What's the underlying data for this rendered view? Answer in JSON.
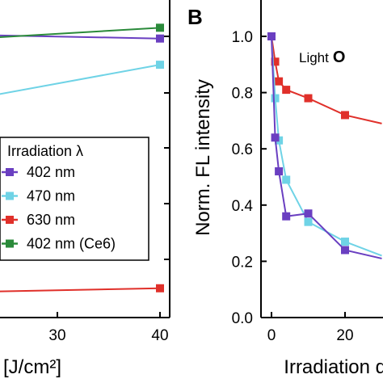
{
  "chart_data": [
    {
      "type": "line",
      "panel_label": "",
      "xlabel": "[J/cm²]",
      "ylabel": "",
      "x_ticks": [
        30,
        40
      ],
      "xlim": [
        17,
        42
      ],
      "ylim": [
        0.05,
        1.08
      ],
      "grid": false,
      "legend_title": "Irradiation λ",
      "legend_placement": "left",
      "series": [
        {
          "name": "402 nm",
          "color": "#6a3fc1",
          "x": [
            40
          ],
          "y": [
            0.955
          ]
        },
        {
          "name": "470 nm",
          "color": "#6fd3e6",
          "x": [
            17,
            40
          ],
          "y": [
            0.73,
            0.87
          ]
        },
        {
          "name": "630 nm",
          "color": "#e0302a",
          "x": [
            17,
            40
          ],
          "y": [
            0.13,
            0.145
          ]
        },
        {
          "name": "402 nm (Ce6)",
          "color": "#2a8a3a",
          "x": [
            17,
            40
          ],
          "y": [
            0.945,
            0.99
          ]
        }
      ],
      "series_extra": {
        "402 nm": {
          "x": [
            17
          ],
          "y": [
            0.97
          ]
        }
      }
    },
    {
      "type": "line",
      "panel_label": "B",
      "xlabel": "Irradiation dose",
      "ylabel": "Norm. FL intensity",
      "x_ticks": [
        0,
        20
      ],
      "y_ticks": [
        0.0,
        0.2,
        0.4,
        0.6,
        0.8,
        1.0
      ],
      "y_tick_labels": [
        "0.0",
        "0.2",
        "0.4",
        "0.6",
        "0.8",
        "1.0"
      ],
      "xlim": [
        -2,
        30
      ],
      "ylim": [
        0,
        1.08
      ],
      "grid": false,
      "annotation": {
        "prefix": "Light",
        "bold": "O"
      },
      "series": [
        {
          "name": "630 nm",
          "color": "#e0302a",
          "x": [
            0,
            1,
            2,
            4,
            10,
            20,
            30
          ],
          "y": [
            1.0,
            0.91,
            0.84,
            0.81,
            0.78,
            0.72,
            0.69
          ]
        },
        {
          "name": "470 nm",
          "color": "#6fd3e6",
          "x": [
            0,
            1,
            2,
            4,
            10,
            20,
            30
          ],
          "y": [
            1.0,
            0.78,
            0.63,
            0.49,
            0.34,
            0.27,
            0.22
          ]
        },
        {
          "name": "402 nm",
          "color": "#6a3fc1",
          "x": [
            0,
            1,
            2,
            4,
            10,
            20,
            30
          ],
          "y": [
            1.0,
            0.64,
            0.52,
            0.36,
            0.37,
            0.24,
            0.21
          ]
        }
      ]
    }
  ]
}
